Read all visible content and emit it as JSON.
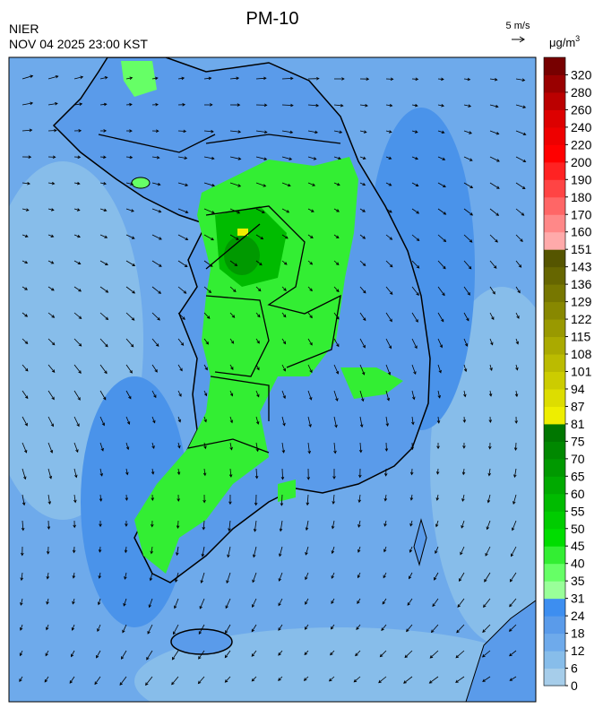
{
  "header": {
    "title": "PM-10",
    "agency": "NIER",
    "timestamp": "NOV 04 2025 23:00 KST",
    "wind_scale": "5 m/s",
    "unit": {
      "base": "μg/m",
      "sup": "3"
    }
  },
  "colorbar": {
    "levels": [
      0,
      6,
      12,
      18,
      24,
      31,
      35,
      40,
      45,
      50,
      55,
      60,
      65,
      70,
      75,
      81,
      87,
      94,
      101,
      108,
      115,
      122,
      129,
      136,
      143,
      151,
      160,
      170,
      180,
      190,
      200,
      220,
      240,
      260,
      280,
      320
    ],
    "colors": [
      "#a6cdea",
      "#87bdea",
      "#6eaaeb",
      "#5a9bea",
      "#3d8ef0",
      "#99ff99",
      "#66ff66",
      "#33ee33",
      "#00dd00",
      "#00cc00",
      "#00bb00",
      "#00aa00",
      "#009900",
      "#008800",
      "#007700",
      "#eeee00",
      "#dddd00",
      "#cccc00",
      "#bbbb00",
      "#aaaa00",
      "#999900",
      "#888800",
      "#777700",
      "#666600",
      "#555500",
      "#ffaaaa",
      "#ff8888",
      "#ff6666",
      "#ff4444",
      "#ff2222",
      "#ff0000",
      "#ee0000",
      "#dd0000",
      "#bb0000",
      "#990000",
      "#770000"
    ]
  }
}
